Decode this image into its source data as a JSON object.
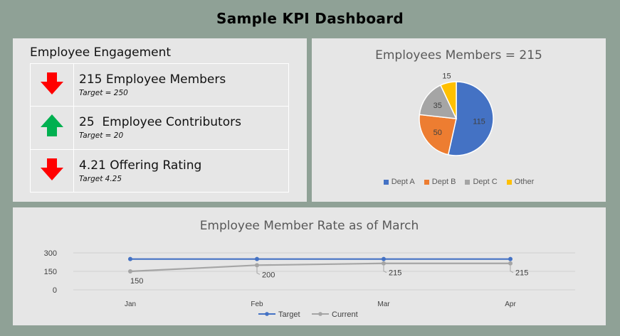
{
  "dashboard": {
    "title": "Sample KPI Dashboard"
  },
  "engagement": {
    "title": "Employee Engagement",
    "kpis": [
      {
        "text": "215 Employee Members",
        "target": "Target = 250",
        "direction": "down",
        "color": "#ff0000"
      },
      {
        "text": "25  Employee Contributors",
        "target": "Target = 20",
        "direction": "up",
        "color": "#00b050"
      },
      {
        "text": "4.21 Offering Rating",
        "target": "Target 4.25",
        "direction": "down",
        "color": "#ff0000"
      }
    ]
  },
  "chart_data": [
    {
      "type": "pie",
      "title": "Employees Members = 215",
      "categories": [
        "Dept A",
        "Dept B",
        "Dept C",
        "Other"
      ],
      "values": [
        115,
        50,
        35,
        15
      ],
      "colors": [
        "#4472c4",
        "#ed7d31",
        "#a5a5a5",
        "#ffc000"
      ],
      "legend": "bottom"
    },
    {
      "type": "line",
      "title": "Employee Member Rate as of March",
      "categories": [
        "Jan",
        "Feb",
        "Mar",
        "Apr"
      ],
      "series": [
        {
          "name": "Target",
          "values": [
            250,
            250,
            250,
            250
          ],
          "color": "#4472c4",
          "data_labels": false
        },
        {
          "name": "Current",
          "values": [
            150,
            200,
            215,
            215
          ],
          "color": "#a5a5a5",
          "data_labels": true
        }
      ],
      "yticks": [
        0,
        150,
        300
      ],
      "ylim": [
        0,
        300
      ],
      "grid": true,
      "legend": "bottom"
    }
  ]
}
